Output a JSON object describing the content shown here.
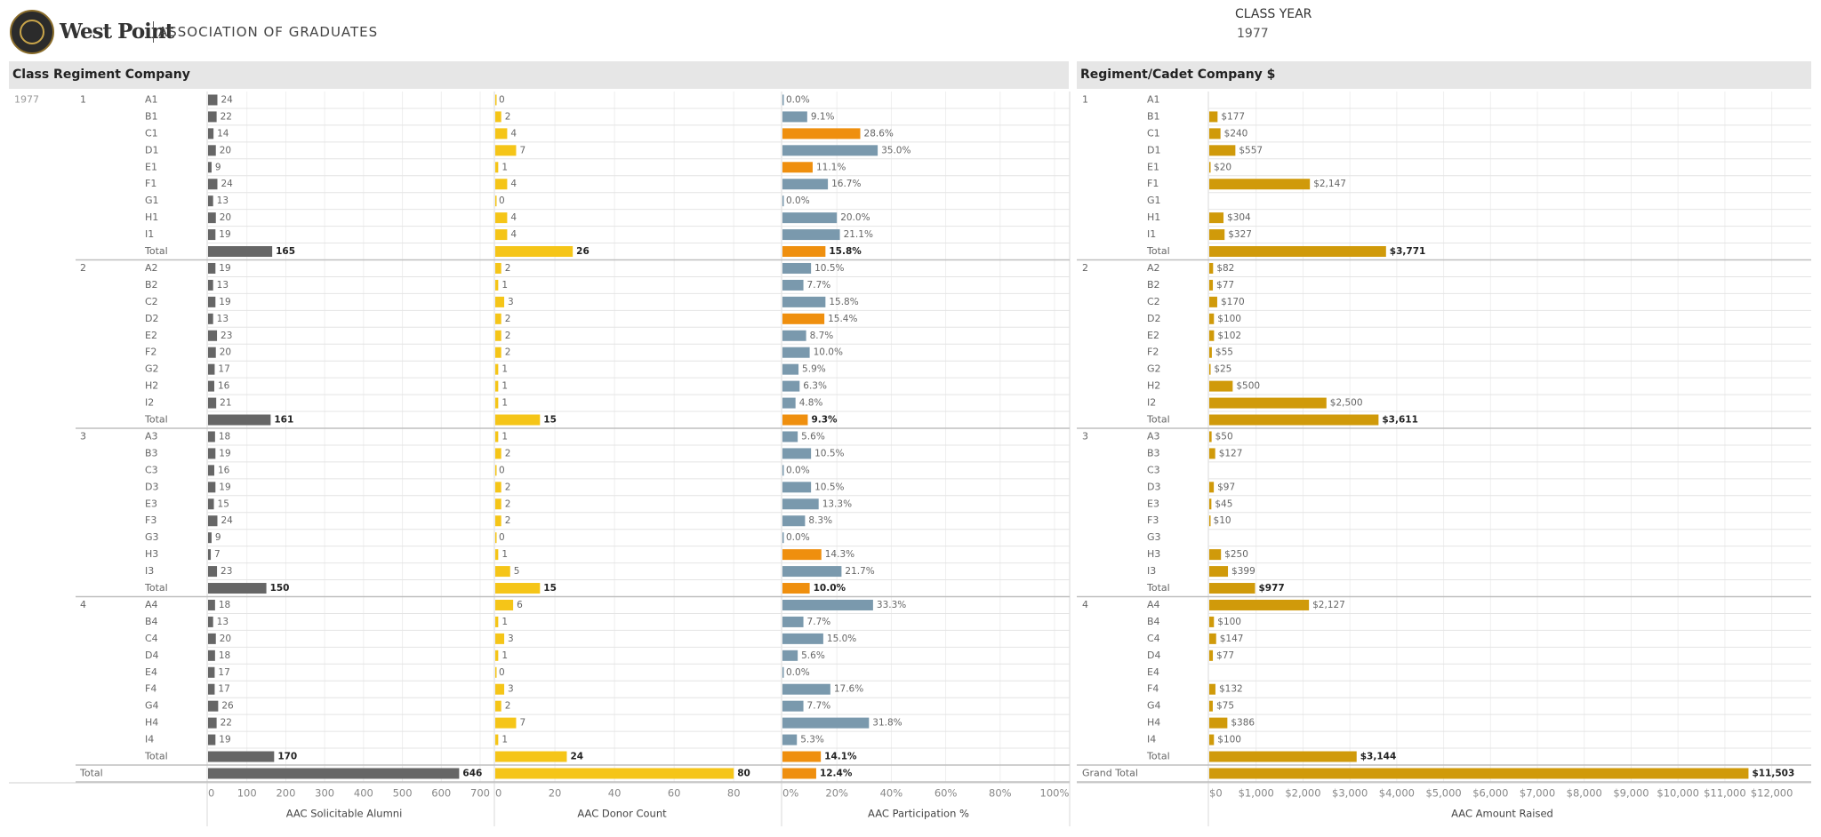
{
  "header": {
    "logo_title": "West Point",
    "logo_subtitle": "ASSOCIATION OF GRADUATES",
    "filter_label": "CLASS YEAR",
    "filter_value": "1977"
  },
  "left_panel": {
    "title": "Class Regiment Company"
  },
  "right_panel": {
    "title": "Regiment/Cadet Company $"
  },
  "colors": {
    "solicitable": "#666666",
    "donor": "#f5c518",
    "participation_normal": "#7a99ad",
    "participation_low": "#ef8f0e",
    "amount": "#d09a0a"
  },
  "chart_data": {
    "type": "bar",
    "orientation": "horizontal",
    "class_year": "1977",
    "regiments": [
      {
        "regiment": "1",
        "companies": [
          {
            "company": "A1",
            "solicitable": 24,
            "donors": 0,
            "participation": "0.0%",
            "amount": ""
          },
          {
            "company": "B1",
            "solicitable": 22,
            "donors": 2,
            "participation": "9.1%",
            "amount": "$177"
          },
          {
            "company": "C1",
            "solicitable": 14,
            "donors": 4,
            "participation": "28.6%",
            "amount": "$240"
          },
          {
            "company": "D1",
            "solicitable": 20,
            "donors": 7,
            "participation": "35.0%",
            "amount": "$557"
          },
          {
            "company": "E1",
            "solicitable": 9,
            "donors": 1,
            "participation": "11.1%",
            "amount": "$20"
          },
          {
            "company": "F1",
            "solicitable": 24,
            "donors": 4,
            "participation": "16.7%",
            "amount": "$2,147"
          },
          {
            "company": "G1",
            "solicitable": 13,
            "donors": 0,
            "participation": "0.0%",
            "amount": ""
          },
          {
            "company": "H1",
            "solicitable": 20,
            "donors": 4,
            "participation": "20.0%",
            "amount": "$304"
          },
          {
            "company": "I1",
            "solicitable": 19,
            "donors": 4,
            "participation": "21.1%",
            "amount": "$327"
          }
        ],
        "total": {
          "solicitable": 165,
          "donors": 26,
          "participation": "15.8%",
          "amount": "$3,771"
        }
      },
      {
        "regiment": "2",
        "companies": [
          {
            "company": "A2",
            "solicitable": 19,
            "donors": 2,
            "participation": "10.5%",
            "amount": "$82"
          },
          {
            "company": "B2",
            "solicitable": 13,
            "donors": 1,
            "participation": "7.7%",
            "amount": "$77"
          },
          {
            "company": "C2",
            "solicitable": 19,
            "donors": 3,
            "participation": "15.8%",
            "amount": "$170"
          },
          {
            "company": "D2",
            "solicitable": 13,
            "donors": 2,
            "participation": "15.4%",
            "amount": "$100"
          },
          {
            "company": "E2",
            "solicitable": 23,
            "donors": 2,
            "participation": "8.7%",
            "amount": "$102"
          },
          {
            "company": "F2",
            "solicitable": 20,
            "donors": 2,
            "participation": "10.0%",
            "amount": "$55"
          },
          {
            "company": "G2",
            "solicitable": 17,
            "donors": 1,
            "participation": "5.9%",
            "amount": "$25"
          },
          {
            "company": "H2",
            "solicitable": 16,
            "donors": 1,
            "participation": "6.3%",
            "amount": "$500"
          },
          {
            "company": "I2",
            "solicitable": 21,
            "donors": 1,
            "participation": "4.8%",
            "amount": "$2,500"
          }
        ],
        "total": {
          "solicitable": 161,
          "donors": 15,
          "participation": "9.3%",
          "amount": "$3,611"
        }
      },
      {
        "regiment": "3",
        "companies": [
          {
            "company": "A3",
            "solicitable": 18,
            "donors": 1,
            "participation": "5.6%",
            "amount": "$50"
          },
          {
            "company": "B3",
            "solicitable": 19,
            "donors": 2,
            "participation": "10.5%",
            "amount": "$127"
          },
          {
            "company": "C3",
            "solicitable": 16,
            "donors": 0,
            "participation": "0.0%",
            "amount": ""
          },
          {
            "company": "D3",
            "solicitable": 19,
            "donors": 2,
            "participation": "10.5%",
            "amount": "$97"
          },
          {
            "company": "E3",
            "solicitable": 15,
            "donors": 2,
            "participation": "13.3%",
            "amount": "$45"
          },
          {
            "company": "F3",
            "solicitable": 24,
            "donors": 2,
            "participation": "8.3%",
            "amount": "$10"
          },
          {
            "company": "G3",
            "solicitable": 9,
            "donors": 0,
            "participation": "0.0%",
            "amount": ""
          },
          {
            "company": "H3",
            "solicitable": 7,
            "donors": 1,
            "participation": "14.3%",
            "amount": "$250"
          },
          {
            "company": "I3",
            "solicitable": 23,
            "donors": 5,
            "participation": "21.7%",
            "amount": "$399"
          }
        ],
        "total": {
          "solicitable": 150,
          "donors": 15,
          "participation": "10.0%",
          "amount": "$977"
        }
      },
      {
        "regiment": "4",
        "companies": [
          {
            "company": "A4",
            "solicitable": 18,
            "donors": 6,
            "participation": "33.3%",
            "amount": "$2,127"
          },
          {
            "company": "B4",
            "solicitable": 13,
            "donors": 1,
            "participation": "7.7%",
            "amount": "$100"
          },
          {
            "company": "C4",
            "solicitable": 20,
            "donors": 3,
            "participation": "15.0%",
            "amount": "$147"
          },
          {
            "company": "D4",
            "solicitable": 18,
            "donors": 1,
            "participation": "5.6%",
            "amount": "$77"
          },
          {
            "company": "E4",
            "solicitable": 17,
            "donors": 0,
            "participation": "0.0%",
            "amount": ""
          },
          {
            "company": "F4",
            "solicitable": 17,
            "donors": 3,
            "participation": "17.6%",
            "amount": "$132"
          },
          {
            "company": "G4",
            "solicitable": 26,
            "donors": 2,
            "participation": "7.7%",
            "amount": "$75"
          },
          {
            "company": "H4",
            "solicitable": 22,
            "donors": 7,
            "participation": "31.8%",
            "amount": "$386"
          },
          {
            "company": "I4",
            "solicitable": 19,
            "donors": 1,
            "participation": "5.3%",
            "amount": "$100"
          }
        ],
        "total": {
          "solicitable": 170,
          "donors": 24,
          "participation": "14.1%",
          "amount": "$3,144"
        }
      }
    ],
    "total_label": "Total",
    "grand_total_left_label": "Total",
    "grand_total_right_label": "Grand Total",
    "grand_total": {
      "solicitable": 646,
      "donors": 80,
      "participation": "12.4%",
      "amount": "$11,503"
    },
    "axes": {
      "solicitable": {
        "label": "AAC Solicitable Alumni",
        "range": [
          0,
          700
        ],
        "ticks": [
          "0",
          "100",
          "200",
          "300",
          "400",
          "500",
          "600",
          "700"
        ]
      },
      "donors": {
        "label": "AAC Donor Count",
        "range": [
          0,
          85
        ],
        "ticks": [
          "0",
          "20",
          "40",
          "60",
          "80"
        ]
      },
      "participation": {
        "label": "AAC Participation %",
        "range": [
          0,
          100
        ],
        "ticks": [
          "0%",
          "20%",
          "40%",
          "60%",
          "80%",
          "100%"
        ]
      },
      "amount": {
        "label": "AAC Amount Raised",
        "range": [
          0,
          12500
        ],
        "ticks": [
          "$0",
          "$1,000",
          "$2,000",
          "$3,000",
          "$4,000",
          "$5,000",
          "$6,000",
          "$7,000",
          "$8,000",
          "$9,000",
          "$10,000",
          "$11,000",
          "$12,000"
        ]
      }
    },
    "participation_color_rule": "orange when participation is 11.1% or higher within first regiment pattern; otherwise slate blue"
  }
}
